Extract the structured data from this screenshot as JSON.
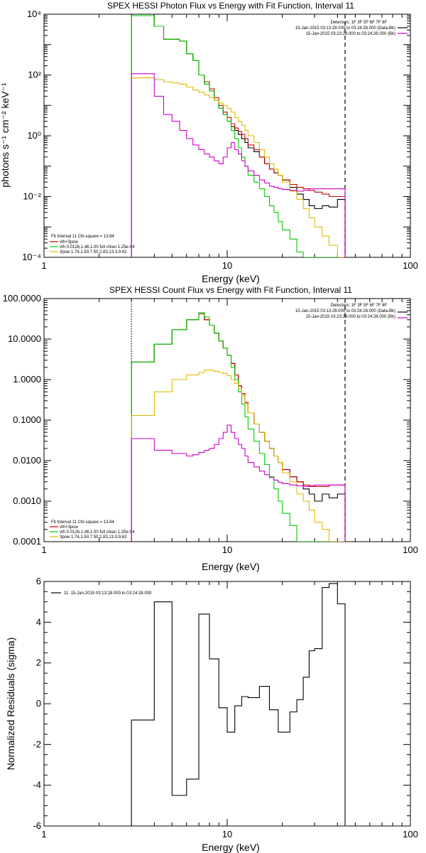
{
  "chart_data": [
    {
      "type": "line",
      "title": "SPEX HESSI Photon Flux vs Energy with Fit Function, Interval 11",
      "xlabel": "Energy (keV)",
      "ylabel": "photons s⁻¹ cm⁻² keV⁻¹",
      "xscale": "log",
      "yscale": "log",
      "xlim": [
        1,
        100
      ],
      "ylim": [
        0.0001,
        10000
      ],
      "xticks": [
        {
          "value": 1,
          "label": "1"
        },
        {
          "value": 10,
          "label": "10"
        },
        {
          "value": 100,
          "label": "100"
        }
      ],
      "yticks": [
        {
          "value": 0.0001,
          "label": "10⁻⁴"
        },
        {
          "value": 0.01,
          "label": "10⁻²"
        },
        {
          "value": 1,
          "label": "10⁰"
        },
        {
          "value": 100,
          "label": "10²"
        },
        {
          "value": 10000,
          "label": "10⁴"
        }
      ],
      "vlines": [
        {
          "x": 3.0,
          "style": "dotted",
          "color": "#000000"
        },
        {
          "x": 44.0,
          "style": "dashed",
          "color": "#000000"
        }
      ],
      "legend_topright": {
        "detectors": "Detectors: 1F 3F 5F 6F 7F 8F",
        "entries": [
          {
            "text": "15-Jan-2015 03:13:28.000 to 03:24:28.000 (Data-Bk)",
            "color": "#000000"
          },
          {
            "text": "15-Jan-2015 03:23:28.000 to 03:24:28.000 (Bk)",
            "color": "#cc00cc"
          }
        ]
      },
      "legend_bottomleft": {
        "header": "Fit Interval 11   Chi-square = 13.84",
        "entries": [
          {
            "text": "vth+3pow",
            "color": "#cc0000"
          },
          {
            "text": "vth 0.0126,1.46,1.00  full chian 1.25e-04",
            "color": "#00cc00"
          },
          {
            "text": "3pow 1.74,1.50,7.50,2.83,13.3,9.62",
            "color": "#ddbb00"
          }
        ]
      },
      "edges": [
        3.0,
        3.5,
        4.0,
        4.5,
        5.0,
        5.5,
        6.0,
        6.5,
        7.0,
        7.5,
        8.0,
        8.5,
        9.0,
        9.5,
        10.0,
        10.5,
        11.0,
        11.5,
        12.0,
        12.5,
        13.0,
        14.0,
        15.0,
        16.0,
        17.0,
        18.0,
        19.0,
        20.0,
        22.0,
        24.0,
        26.0,
        28.0,
        30.0,
        33.0,
        36.0,
        40.0,
        44.0
      ],
      "series": [
        {
          "color": "#000000",
          "values": [
            9000,
            9000,
            4000,
            1500,
            1500,
            1300,
            500,
            300,
            100,
            50,
            30,
            15,
            8,
            5,
            3,
            2,
            1.5,
            1.1,
            0.8,
            0.6,
            0.4,
            0.3,
            0.2,
            0.12,
            0.08,
            0.06,
            0.05,
            0.035,
            0.02,
            0.012,
            0.008,
            0.005,
            0.004,
            0.005,
            0.0045,
            0.008
          ]
        },
        {
          "color": "#cc0000",
          "values": [
            9000,
            9000,
            4000,
            1500,
            1500,
            1300,
            500,
            300,
            100,
            60,
            35,
            18,
            10,
            6,
            4,
            2.5,
            1.8,
            1.4,
            1.1,
            0.8,
            0.5,
            0.35,
            0.2,
            0.12,
            0.08,
            0.06,
            0.05,
            0.035,
            0.025,
            0.02,
            0.018,
            0.016,
            0.014,
            0.012,
            0.01,
            0.01
          ]
        },
        {
          "color": "#00cc00",
          "values": [
            9000,
            9000,
            4000,
            1500,
            1500,
            1300,
            500,
            300,
            100,
            50,
            30,
            15,
            8,
            5,
            3,
            1.5,
            0.8,
            0.4,
            0.2,
            0.1,
            0.05,
            0.03,
            0.018,
            0.01,
            0.005,
            0.003,
            0.0015,
            0.0008,
            0.0004,
            0.00015,
            0.0001,
            0.0001,
            0.0001,
            0.0001,
            0.0001,
            0.0001
          ]
        },
        {
          "color": "#ddbb00",
          "values": [
            80,
            80,
            70,
            60,
            55,
            50,
            40,
            32,
            27,
            22,
            18,
            15,
            12,
            10,
            8,
            6,
            4,
            3,
            2.2,
            1.5,
            1,
            0.6,
            0.35,
            0.2,
            0.12,
            0.08,
            0.05,
            0.03,
            0.015,
            0.008,
            0.004,
            0.002,
            0.001,
            0.0005,
            0.00025,
            0.0001
          ]
        },
        {
          "color": "#cc00cc",
          "values": [
            110,
            110,
            20,
            5,
            3,
            1.5,
            0.8,
            0.5,
            0.35,
            0.25,
            0.2,
            0.15,
            0.12,
            0.2,
            0.4,
            0.6,
            0.35,
            0.25,
            0.15,
            0.1,
            0.07,
            0.05,
            0.035,
            0.028,
            0.022,
            0.02,
            0.018,
            0.017,
            0.016,
            0.015,
            0.016,
            0.018,
            0.018,
            0.018,
            0.018,
            0.018
          ]
        }
      ]
    },
    {
      "type": "line",
      "title": "SPEX HESSI Count Flux vs Energy with Fit Function, Interval 11",
      "xlabel": "Energy (keV)",
      "ylabel": "",
      "xscale": "log",
      "yscale": "log",
      "xlim": [
        1,
        100
      ],
      "ylim": [
        0.0001,
        100
      ],
      "xticks": [
        {
          "value": 1,
          "label": "1"
        },
        {
          "value": 10,
          "label": "10"
        },
        {
          "value": 100,
          "label": "100"
        }
      ],
      "yticks": [
        {
          "value": 0.0001,
          "label": "0.0001"
        },
        {
          "value": 0.001,
          "label": "0.0010"
        },
        {
          "value": 0.01,
          "label": "0.0100"
        },
        {
          "value": 0.1,
          "label": "0.1000"
        },
        {
          "value": 1,
          "label": "1.0000"
        },
        {
          "value": 10,
          "label": "10.0000"
        },
        {
          "value": 100,
          "label": "100.0000"
        }
      ],
      "vlines": [
        {
          "x": 3.0,
          "style": "dotted",
          "color": "#000000"
        },
        {
          "x": 44.0,
          "style": "dashed",
          "color": "#000000"
        }
      ],
      "legend_topright": {
        "detectors": "Detectors: 1F 3F 5F 6F 7F 8F",
        "entries": [
          {
            "text": "15-Jan-2015 03:13:28.000 to 03:24:28.000 (Data-Bk)",
            "color": "#000000"
          },
          {
            "text": "15-Jan-2015 03:23:28.000 to 03:24:28.000 (Bk)",
            "color": "#cc00cc"
          }
        ]
      },
      "legend_bottomleft": {
        "header": "Fit Interval 11   Chi-square = 13.84",
        "entries": [
          {
            "text": "vth+3pow",
            "color": "#cc0000"
          },
          {
            "text": "vth 0.0126,1.46,1.00  full chian 1.25e-04",
            "color": "#00cc00"
          },
          {
            "text": "3pow 1.74,1.50,7.50,2.83,13.3,9.62",
            "color": "#ddbb00"
          }
        ]
      },
      "edges": [
        3.0,
        3.5,
        4.0,
        4.5,
        5.0,
        5.5,
        6.0,
        6.5,
        7.0,
        7.5,
        8.0,
        8.5,
        9.0,
        9.5,
        10.0,
        10.5,
        11.0,
        11.5,
        12.0,
        12.5,
        13.0,
        14.0,
        15.0,
        16.0,
        17.0,
        18.0,
        19.0,
        20.0,
        22.0,
        24.0,
        26.0,
        28.0,
        30.0,
        33.0,
        36.0,
        40.0,
        44.0
      ],
      "series": [
        {
          "color": "#000000",
          "values": [
            2.7,
            2.7,
            7.5,
            7.5,
            17,
            17,
            30,
            30,
            42,
            30,
            22,
            14,
            9,
            6,
            4,
            2.5,
            1.3,
            0.7,
            0.45,
            0.27,
            0.15,
            0.08,
            0.05,
            0.03,
            0.02,
            0.013,
            0.009,
            0.006,
            0.004,
            0.003,
            0.002,
            0.0015,
            0.001,
            0.0015,
            0.0012,
            0.0015
          ]
        },
        {
          "color": "#cc0000",
          "values": [
            2.7,
            2.7,
            7.5,
            7.5,
            17,
            17,
            30,
            30,
            42,
            30,
            22,
            14,
            9,
            6,
            4,
            2.5,
            1.3,
            0.7,
            0.45,
            0.27,
            0.15,
            0.08,
            0.05,
            0.03,
            0.02,
            0.013,
            0.009,
            0.006,
            0.004,
            0.003,
            0.0025,
            0.0024,
            0.0023,
            0.0023,
            0.0025,
            0.0025
          ]
        },
        {
          "color": "#00cc00",
          "values": [
            2.7,
            2.7,
            7.5,
            7.5,
            17,
            17,
            30,
            30,
            45,
            35,
            22,
            14,
            9,
            6,
            4,
            2,
            1,
            0.5,
            0.25,
            0.12,
            0.06,
            0.03,
            0.015,
            0.008,
            0.004,
            0.002,
            0.001,
            0.0005,
            0.00025,
            0.0001,
            0.0001,
            0.0001,
            0.0001,
            0.0001,
            0.0001,
            0.0001
          ]
        },
        {
          "color": "#ddbb00",
          "values": [
            0.13,
            0.13,
            0.5,
            0.5,
            1.0,
            1.0,
            1.3,
            1.3,
            1.5,
            1.7,
            1.7,
            1.6,
            1.5,
            1.4,
            1.25,
            1.0,
            0.8,
            0.6,
            0.4,
            0.25,
            0.15,
            0.08,
            0.05,
            0.03,
            0.02,
            0.013,
            0.009,
            0.005,
            0.003,
            0.0015,
            0.001,
            0.0006,
            0.0003,
            0.0002,
            0.0001,
            0.0001
          ]
        },
        {
          "color": "#cc00cc",
          "values": [
            0.035,
            0.035,
            0.018,
            0.018,
            0.015,
            0.015,
            0.013,
            0.014,
            0.016,
            0.018,
            0.02,
            0.025,
            0.035,
            0.05,
            0.075,
            0.05,
            0.035,
            0.025,
            0.02,
            0.013,
            0.009,
            0.007,
            0.0055,
            0.0045,
            0.0038,
            0.0033,
            0.0029,
            0.0027,
            0.0025,
            0.0024,
            0.0023,
            0.0023,
            0.0025,
            0.0025,
            0.0025,
            0.0025
          ]
        }
      ]
    },
    {
      "type": "line",
      "title": "",
      "xlabel": "Energy (keV)",
      "ylabel": "Normalized Residuals (sigma)",
      "xscale": "log",
      "yscale": "linear",
      "xlim": [
        1,
        100
      ],
      "ylim": [
        -6,
        6
      ],
      "xticks": [
        {
          "value": 1,
          "label": "1"
        },
        {
          "value": 10,
          "label": "10"
        },
        {
          "value": 100,
          "label": "100"
        }
      ],
      "yticks": [
        {
          "value": -6,
          "label": "-6"
        },
        {
          "value": -4,
          "label": "-4"
        },
        {
          "value": -2,
          "label": "-2"
        },
        {
          "value": 0,
          "label": "0"
        },
        {
          "value": 2,
          "label": "2"
        },
        {
          "value": 4,
          "label": "4"
        },
        {
          "value": 6,
          "label": "6"
        }
      ],
      "vlines": [],
      "legend_topleft": {
        "entries": [
          {
            "text": "11. 15-Jan-2015 03:13:28.000 to 03:24:28.000",
            "color": "#000000"
          }
        ]
      },
      "edges": [
        3.0,
        3.5,
        4.0,
        4.5,
        5.0,
        5.5,
        6.0,
        6.5,
        7.0,
        7.5,
        8.0,
        8.5,
        9.0,
        9.5,
        10.0,
        10.5,
        11.0,
        11.5,
        12.0,
        12.5,
        13.0,
        14.0,
        15.0,
        16.0,
        17.0,
        18.0,
        19.0,
        20.0,
        22.0,
        24.0,
        26.0,
        28.0,
        30.0,
        33.0,
        36.0,
        40.0,
        44.0
      ],
      "series": [
        {
          "color": "#000000",
          "values": [
            -0.8,
            -0.8,
            5.0,
            5.0,
            -4.5,
            -4.5,
            -3.7,
            -3.7,
            4.4,
            4.4,
            2.2,
            2.2,
            -0.2,
            -0.2,
            -1.4,
            -1.4,
            -0.1,
            -0.1,
            0.35,
            0.35,
            0.3,
            0.3,
            0.85,
            0.85,
            -0.3,
            -0.3,
            -1.4,
            -1.4,
            -0.4,
            0.2,
            1.3,
            2.6,
            2.7,
            5.7,
            5.9,
            4.9
          ]
        }
      ]
    }
  ]
}
